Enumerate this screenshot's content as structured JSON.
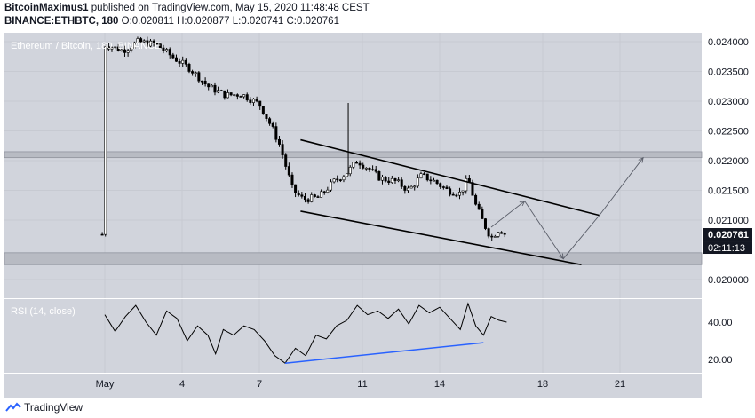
{
  "header": {
    "author": "BitcoinMaximus1",
    "published_text": "published on TradingView.com, May 15, 2020 11:48:48 CEST",
    "symbol": "BINANCE:ETHBTC, 180",
    "ohlc": "O:0.020811 H:0.020877 L:0.020741 C:0.020761"
  },
  "footer": {
    "brand": "TradingView",
    "logo_icon": "tradingview-logo-icon"
  },
  "colors": {
    "pane_bg": "#d1d4dc",
    "candle": "#000000",
    "zone_fill": "#b8bbc3",
    "rsi_line": "#000000",
    "divergence_line": "#2962ff",
    "price_label_bg": "#131722"
  },
  "chart_data": [
    {
      "type": "candlestick",
      "title": "Ethereum / Bitcoin, 180, BINANCE",
      "x_ticks": [
        "May",
        "4",
        "7",
        "11",
        "14",
        "18",
        "21"
      ],
      "y_ticks": [
        "0.024000",
        "0.023500",
        "0.023000",
        "0.022500",
        "0.022000",
        "0.021500",
        "0.021000",
        "0.020000"
      ],
      "ylim": [
        0.0196,
        0.0242
      ],
      "current_price": "0.020761",
      "countdown": "02:11:13",
      "grid": true,
      "zones": [
        {
          "from": 0.02205,
          "to": 0.02215
        },
        {
          "from": 0.02025,
          "to": 0.02045
        }
      ],
      "channel": {
        "upper": [
          {
            "x": 7.6,
            "y": 0.02235
          },
          {
            "x": 19.2,
            "y": 0.02108
          }
        ],
        "lower": [
          {
            "x": 7.6,
            "y": 0.02115
          },
          {
            "x": 18.5,
            "y": 0.02025
          }
        ]
      },
      "projection_path": [
        {
          "x": 15.0,
          "y": 0.02088
        },
        {
          "x": 16.3,
          "y": 0.02132
        },
        {
          "x": 17.8,
          "y": 0.02035
        },
        {
          "x": 19.2,
          "y": 0.02108
        },
        {
          "x": 20.9,
          "y": 0.02205
        }
      ],
      "price_path_points": [
        {
          "x": 0.0,
          "y": 0.02395
        },
        {
          "x": 0.7,
          "y": 0.02385
        },
        {
          "x": 1.3,
          "y": 0.024
        },
        {
          "x": 2.0,
          "y": 0.02395
        },
        {
          "x": 2.7,
          "y": 0.02372
        },
        {
          "x": 3.3,
          "y": 0.02355
        },
        {
          "x": 4.0,
          "y": 0.02325
        },
        {
          "x": 4.7,
          "y": 0.0231
        },
        {
          "x": 5.3,
          "y": 0.02312
        },
        {
          "x": 6.0,
          "y": 0.02295
        },
        {
          "x": 6.5,
          "y": 0.02255
        },
        {
          "x": 6.8,
          "y": 0.02225
        },
        {
          "x": 7.0,
          "y": 0.02195
        },
        {
          "x": 7.3,
          "y": 0.0215
        },
        {
          "x": 7.7,
          "y": 0.02135
        },
        {
          "x": 8.3,
          "y": 0.02138
        },
        {
          "x": 8.9,
          "y": 0.02165
        },
        {
          "x": 9.4,
          "y": 0.0218
        },
        {
          "x": 9.8,
          "y": 0.022
        },
        {
          "x": 10.2,
          "y": 0.02188
        },
        {
          "x": 10.7,
          "y": 0.0217
        },
        {
          "x": 11.3,
          "y": 0.02165
        },
        {
          "x": 11.8,
          "y": 0.0215
        },
        {
          "x": 12.3,
          "y": 0.02175
        },
        {
          "x": 12.8,
          "y": 0.02165
        },
        {
          "x": 13.3,
          "y": 0.0215
        },
        {
          "x": 13.8,
          "y": 0.02145
        },
        {
          "x": 14.1,
          "y": 0.0217
        },
        {
          "x": 14.4,
          "y": 0.02125
        },
        {
          "x": 14.7,
          "y": 0.02095
        },
        {
          "x": 15.0,
          "y": 0.0207
        },
        {
          "x": 15.3,
          "y": 0.02085
        },
        {
          "x": 15.6,
          "y": 0.02076
        }
      ]
    },
    {
      "type": "line",
      "title": "RSI (14, close)",
      "y_ticks": [
        "40.00",
        "20.00"
      ],
      "ylim": [
        10,
        52
      ],
      "rsi_points": [
        {
          "x": 0.0,
          "y": 44
        },
        {
          "x": 0.4,
          "y": 35
        },
        {
          "x": 0.8,
          "y": 43
        },
        {
          "x": 1.2,
          "y": 49
        },
        {
          "x": 1.6,
          "y": 40
        },
        {
          "x": 2.0,
          "y": 33
        },
        {
          "x": 2.4,
          "y": 46
        },
        {
          "x": 2.8,
          "y": 42
        },
        {
          "x": 3.2,
          "y": 30
        },
        {
          "x": 3.6,
          "y": 38
        },
        {
          "x": 4.0,
          "y": 33
        },
        {
          "x": 4.3,
          "y": 23
        },
        {
          "x": 4.6,
          "y": 36
        },
        {
          "x": 5.0,
          "y": 33
        },
        {
          "x": 5.4,
          "y": 38
        },
        {
          "x": 5.8,
          "y": 36
        },
        {
          "x": 6.2,
          "y": 30
        },
        {
          "x": 6.6,
          "y": 22
        },
        {
          "x": 7.0,
          "y": 18
        },
        {
          "x": 7.4,
          "y": 26
        },
        {
          "x": 7.8,
          "y": 22
        },
        {
          "x": 8.2,
          "y": 33
        },
        {
          "x": 8.6,
          "y": 31
        },
        {
          "x": 9.0,
          "y": 38
        },
        {
          "x": 9.4,
          "y": 41
        },
        {
          "x": 9.8,
          "y": 49
        },
        {
          "x": 10.2,
          "y": 44
        },
        {
          "x": 10.6,
          "y": 46
        },
        {
          "x": 11.0,
          "y": 42
        },
        {
          "x": 11.4,
          "y": 47
        },
        {
          "x": 11.8,
          "y": 39
        },
        {
          "x": 12.2,
          "y": 49
        },
        {
          "x": 12.6,
          "y": 45
        },
        {
          "x": 13.0,
          "y": 48
        },
        {
          "x": 13.4,
          "y": 42
        },
        {
          "x": 13.8,
          "y": 36
        },
        {
          "x": 14.1,
          "y": 50
        },
        {
          "x": 14.4,
          "y": 38
        },
        {
          "x": 14.7,
          "y": 33
        },
        {
          "x": 15.0,
          "y": 43
        },
        {
          "x": 15.3,
          "y": 41
        },
        {
          "x": 15.6,
          "y": 40
        }
      ],
      "divergence": [
        {
          "x": 7.0,
          "y": 18
        },
        {
          "x": 14.7,
          "y": 29
        }
      ]
    }
  ]
}
